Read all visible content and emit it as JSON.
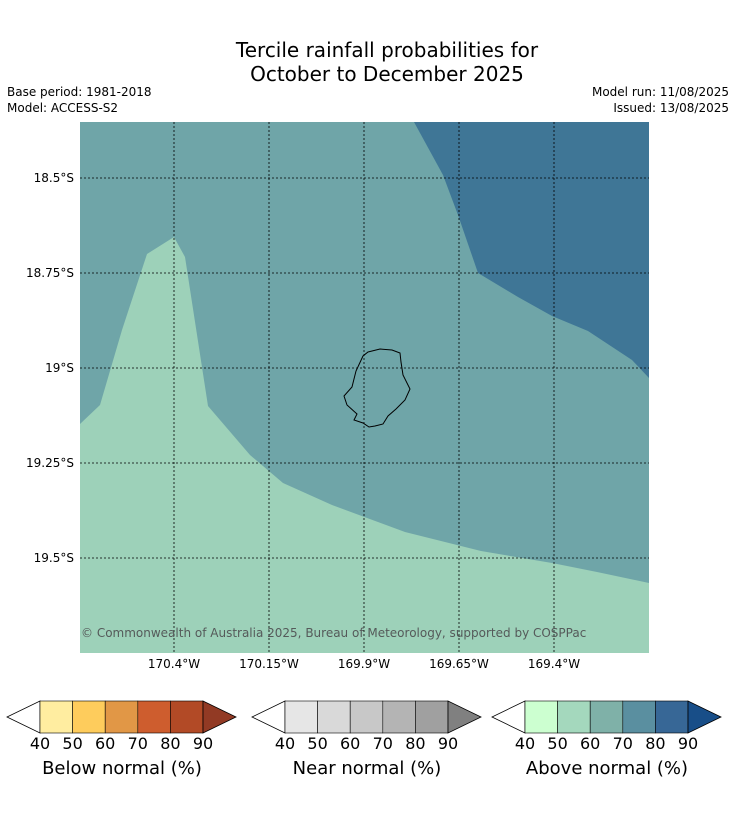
{
  "title_line1": "Tercile rainfall probabilities for",
  "title_line2": "October to December 2025",
  "base_period": "Base period: 1981-2018",
  "model": "Model: ACCESS-S2",
  "model_run": "Model run: 11/08/2025",
  "issued": "Issued: 13/08/2025",
  "credit": "© Commonwealth of Australia 2025, Bureau of Meteorology, supported by COSPPac",
  "lat_labels": [
    "18.5°S",
    "18.75°S",
    "19°S",
    "19.25°S",
    "19.5°S"
  ],
  "lon_labels": [
    "170.4°W",
    "170.15°W",
    "169.9°W",
    "169.65°W",
    "169.4°W"
  ],
  "colors": {
    "above_50": "#9dd1b9",
    "above_60": "#6fa5a8",
    "above_70": "#3f7696",
    "coastline": "#000000"
  },
  "colorbars": [
    {
      "label": "Below normal (%)",
      "ticks": [
        "40",
        "50",
        "60",
        "70",
        "80",
        "90"
      ],
      "colors": [
        "#ffeda0",
        "#fecc5c",
        "#e19746",
        "#ce5d2e",
        "#b24a26",
        "#923a24"
      ]
    },
    {
      "label": "Near normal (%)",
      "ticks": [
        "40",
        "50",
        "60",
        "70",
        "80",
        "90"
      ],
      "colors": [
        "#e6e6e6",
        "#d9d9d9",
        "#c8c8c8",
        "#b4b4b4",
        "#a0a0a0",
        "#808080"
      ]
    },
    {
      "label": "Above normal (%)",
      "ticks": [
        "40",
        "50",
        "60",
        "70",
        "80",
        "90"
      ],
      "colors": [
        "#ccffd0",
        "#a4d8bd",
        "#7fb1a8",
        "#5a8fa0",
        "#376796",
        "#184e88"
      ]
    }
  ]
}
